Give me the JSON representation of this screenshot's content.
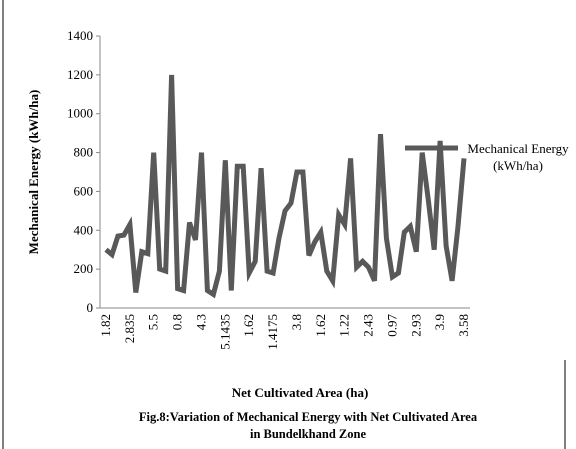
{
  "chart_data": {
    "type": "line",
    "y_label": "Mechanical Energy  (kWh/ha)",
    "x_label": "Net Cultivated Area (ha)",
    "caption": [
      "Fig.8:Variation of Mechanical Energy  with Net Cultivated Area",
      "in Bundelkhand Zone"
    ],
    "categories": [
      "1.82",
      null,
      null,
      null,
      "2.835",
      null,
      null,
      null,
      "5.5",
      null,
      null,
      null,
      "0.8",
      null,
      null,
      null,
      "4.3",
      null,
      null,
      null,
      "5.1435",
      null,
      null,
      null,
      "1.62",
      null,
      null,
      null,
      "1.4175",
      null,
      null,
      null,
      "3.8",
      null,
      null,
      null,
      "1.62",
      null,
      null,
      null,
      "1.22",
      null,
      null,
      null,
      "2.43",
      null,
      null,
      null,
      "0.97",
      null,
      null,
      null,
      "2.93",
      null,
      null,
      null,
      "3.9",
      null,
      null,
      null,
      "3.58"
    ],
    "series": [
      {
        "name": "Mechanical Energy  (kWh/ha)",
        "color": "#595959",
        "values": [
          300,
          275,
          370,
          375,
          430,
          80,
          290,
          280,
          800,
          200,
          190,
          1200,
          100,
          90,
          440,
          350,
          800,
          90,
          70,
          190,
          760,
          90,
          730,
          730,
          180,
          240,
          720,
          190,
          180,
          360,
          500,
          540,
          700,
          700,
          270,
          340,
          390,
          190,
          140,
          480,
          430,
          770,
          210,
          240,
          210,
          140,
          895,
          360,
          160,
          180,
          390,
          420,
          290,
          800,
          560,
          300,
          860,
          320,
          140,
          420,
          770
        ]
      }
    ],
    "ylim": [
      0,
      1400
    ],
    "yticks": [
      0,
      200,
      400,
      600,
      800,
      1000,
      1200,
      1400
    ],
    "legend": "right",
    "grid": false
  }
}
